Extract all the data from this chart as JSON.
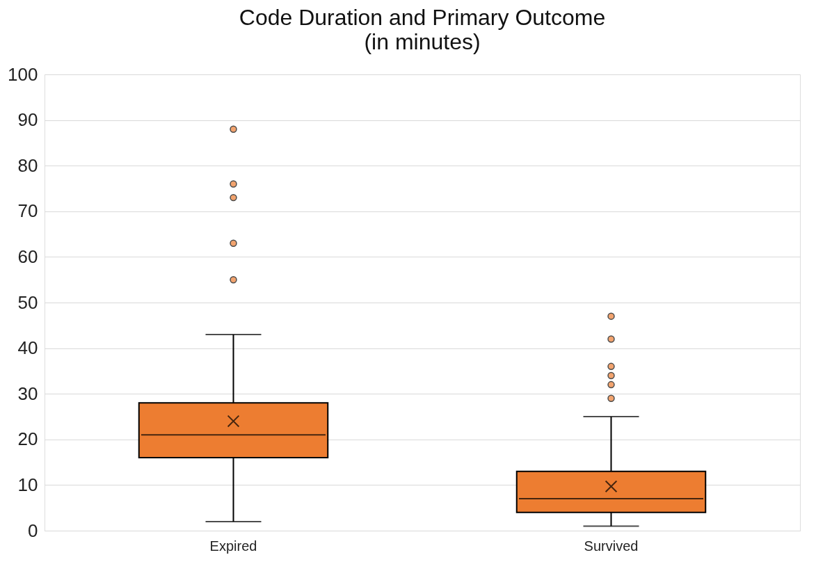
{
  "chart_data": {
    "type": "box",
    "title": "Code Duration and Primary Outcome",
    "subtitle": "(in minutes)",
    "categories": [
      "Expired",
      "Survived"
    ],
    "series": [
      {
        "color": "#ed7d31",
        "boxes": [
          {
            "low": 2,
            "q1": 16,
            "median": 21,
            "q3": 28,
            "high": 43,
            "mean": 24,
            "outliers": [
              55,
              63,
              73,
              76,
              88
            ]
          },
          {
            "low": 1,
            "q1": 4,
            "median": 7,
            "q3": 13,
            "high": 25,
            "mean": 9.7,
            "outliers": [
              29,
              32,
              34,
              36,
              42,
              47
            ]
          }
        ]
      }
    ],
    "ylim": [
      0,
      100
    ],
    "yticks": [
      0,
      10,
      20,
      30,
      40,
      50,
      60,
      70,
      80,
      90,
      100
    ],
    "grid": "y",
    "marker": "circle"
  }
}
